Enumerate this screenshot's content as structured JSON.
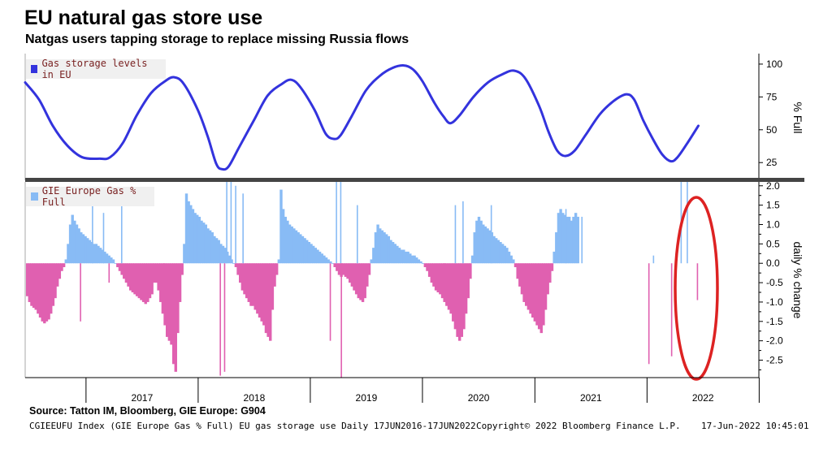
{
  "title": "EU natural gas store use",
  "subtitle": "Natgas users tapping storage to replace missing Russia flows",
  "footer": {
    "source": "Source: Tatton IM, Bloomberg, GIE Europe: G904",
    "index_line": "CGIEEUFU Index (GIE Europe Gas % Full) EU gas storage use  Daily 17JUN2016-17JUN2022",
    "copyright": "Copyright© 2022 Bloomberg Finance L.P.",
    "timestamp": "17-Jun-2022 10:45:01"
  },
  "colors": {
    "line": "#3333dd",
    "positive_bar": "#88bbf5",
    "negative_bar": "#e060b0",
    "highlight_ellipse": "#dd2222",
    "divider": "#444444"
  },
  "chart_data": [
    {
      "type": "line",
      "legend": "Gas storage levels in EU",
      "ylabel": "% Full",
      "yticks": [
        25,
        50,
        75,
        100
      ],
      "ylim": [
        14,
        108
      ],
      "x_axis": "date",
      "points": [
        [
          "2016-06-17",
          86
        ],
        [
          "2016-08-01",
          73
        ],
        [
          "2016-09-15",
          53
        ],
        [
          "2016-11-01",
          38
        ],
        [
          "2016-12-20",
          29
        ],
        [
          "2017-02-15",
          28
        ],
        [
          "2017-03-20",
          29
        ],
        [
          "2017-05-01",
          40
        ],
        [
          "2017-06-15",
          61
        ],
        [
          "2017-08-01",
          78
        ],
        [
          "2017-09-15",
          87
        ],
        [
          "2017-10-15",
          90
        ],
        [
          "2017-11-15",
          85
        ],
        [
          "2017-12-31",
          65
        ],
        [
          "2018-02-01",
          45
        ],
        [
          "2018-03-01",
          24
        ],
        [
          "2018-03-20",
          20
        ],
        [
          "2018-04-10",
          22
        ],
        [
          "2018-05-15",
          37
        ],
        [
          "2018-07-01",
          57
        ],
        [
          "2018-08-15",
          76
        ],
        [
          "2018-10-01",
          85
        ],
        [
          "2018-11-01",
          88
        ],
        [
          "2018-12-01",
          82
        ],
        [
          "2019-01-15",
          65
        ],
        [
          "2019-02-20",
          47
        ],
        [
          "2019-03-20",
          43
        ],
        [
          "2019-04-10",
          46
        ],
        [
          "2019-05-15",
          60
        ],
        [
          "2019-07-01",
          80
        ],
        [
          "2019-08-15",
          91
        ],
        [
          "2019-09-25",
          97
        ],
        [
          "2019-11-01",
          99
        ],
        [
          "2019-12-01",
          96
        ],
        [
          "2020-01-01",
          87
        ],
        [
          "2020-02-10",
          70
        ],
        [
          "2020-03-10",
          60
        ],
        [
          "2020-04-01",
          55
        ],
        [
          "2020-05-01",
          61
        ],
        [
          "2020-06-15",
          75
        ],
        [
          "2020-08-01",
          86
        ],
        [
          "2020-09-15",
          92
        ],
        [
          "2020-10-25",
          95
        ],
        [
          "2020-12-01",
          89
        ],
        [
          "2021-01-15",
          68
        ],
        [
          "2021-02-15",
          48
        ],
        [
          "2021-03-15",
          34
        ],
        [
          "2021-04-10",
          30
        ],
        [
          "2021-05-10",
          34
        ],
        [
          "2021-06-15",
          46
        ],
        [
          "2021-08-01",
          62
        ],
        [
          "2021-09-15",
          72
        ],
        [
          "2021-10-25",
          77
        ],
        [
          "2021-11-20",
          73
        ],
        [
          "2021-12-20",
          57
        ],
        [
          "2022-01-20",
          43
        ],
        [
          "2022-02-20",
          31
        ],
        [
          "2022-03-20",
          26
        ],
        [
          "2022-04-10",
          29
        ],
        [
          "2022-05-10",
          39
        ],
        [
          "2022-06-17",
          53
        ]
      ]
    },
    {
      "type": "bar",
      "legend": "GIE Europe Gas % Full",
      "ylabel": "daily % change",
      "yticks": [
        2.0,
        1.5,
        1.0,
        0.5,
        0.0,
        -0.5,
        -1.0,
        -1.5,
        -2.0,
        -2.5
      ],
      "ylim": [
        -2.95,
        2.1
      ],
      "x_axis": "date",
      "xlim": [
        "2016-06-17",
        "2022-12-31"
      ],
      "xticks": [
        "2017",
        "2018",
        "2019",
        "2020",
        "2021",
        "2022"
      ],
      "weekly_profile": [
        -0.85,
        -1.0,
        -1.1,
        -1.15,
        -1.2,
        -1.3,
        -1.4,
        -1.5,
        -1.55,
        -1.5,
        -1.45,
        -1.3,
        -1.1,
        -0.9,
        -0.6,
        -0.4,
        -0.2,
        -0.1,
        0.1,
        0.5,
        1.0,
        1.25,
        1.1,
        1.0,
        0.9,
        0.8,
        0.75,
        0.7,
        0.65,
        0.6,
        0.55,
        0.5,
        0.5,
        0.45,
        0.4,
        0.35,
        0.3,
        0.25,
        0.2,
        0.15,
        0.1,
        0.0,
        -0.1,
        -0.2,
        -0.3,
        -0.4,
        -0.5,
        -0.6,
        -0.7,
        -0.75,
        -0.8,
        -0.85,
        -0.9,
        -0.95,
        -1.0,
        -1.05,
        -1.0,
        -0.9,
        -0.8,
        -0.5,
        -0.5,
        -0.7,
        -1.0,
        -1.3,
        -1.6,
        -1.9,
        -2.0,
        -2.1,
        -2.6,
        -2.8,
        -1.8,
        -1.0,
        -0.3,
        0.5,
        1.8,
        1.6,
        1.5,
        1.4,
        1.3,
        1.25,
        1.2,
        1.1,
        1.05,
        1.0,
        0.9,
        0.85,
        0.8,
        0.7,
        0.65,
        0.6,
        0.5,
        0.45,
        0.4,
        0.3,
        0.2,
        0.1,
        0.0,
        -0.1,
        -0.3,
        -0.5,
        -0.7,
        -0.8,
        -0.9,
        -1.0,
        -1.1,
        -1.1,
        -1.2,
        -1.3,
        -1.4,
        -1.5,
        -1.6,
        -1.8,
        -1.9,
        -2.0,
        -1.2,
        -0.6,
        -0.3,
        0.1,
        1.9,
        1.4,
        1.2,
        1.1,
        1.0,
        0.95,
        0.9,
        0.85,
        0.8,
        0.75,
        0.7,
        0.65,
        0.6,
        0.55,
        0.5,
        0.45,
        0.4,
        0.35,
        0.3,
        0.25,
        0.2,
        0.15,
        0.1,
        0.05,
        0.0,
        -0.1,
        -0.2,
        -0.3,
        -0.35,
        -0.3,
        -0.35,
        -0.4,
        -0.5,
        -0.6,
        -0.7,
        -0.8,
        -0.9,
        -0.95,
        -1.0,
        -0.9,
        -0.6,
        -0.3,
        0.1,
        0.4,
        0.8,
        1.0,
        0.9,
        0.85,
        0.8,
        0.75,
        0.7,
        0.6,
        0.55,
        0.5,
        0.45,
        0.4,
        0.35,
        0.35,
        0.3,
        0.3,
        0.25,
        0.2,
        0.2,
        0.15,
        0.1,
        0.05,
        0.0,
        -0.1,
        -0.2,
        -0.35,
        -0.5,
        -0.6,
        -0.7,
        -0.75,
        -0.8,
        -0.9,
        -1.0,
        -1.1,
        -1.2,
        -1.3,
        -1.5,
        -1.7,
        -1.9,
        -2.0,
        -1.9,
        -1.7,
        -1.3,
        -0.9,
        -0.4,
        0.2,
        0.8,
        1.1,
        1.2,
        1.1,
        1.0,
        0.95,
        0.9,
        0.85,
        0.8,
        0.7,
        0.65,
        0.6,
        0.55,
        0.5,
        0.45,
        0.4,
        0.3,
        0.2,
        0.1,
        -0.1,
        -0.4,
        -0.6,
        -0.8,
        -1.0,
        -1.1,
        -1.2,
        -1.3,
        -1.4,
        -1.5,
        -1.6,
        -1.7,
        -1.8,
        -1.6,
        -1.2,
        -0.8,
        -0.5,
        -0.2,
        0.3,
        0.8,
        1.3,
        1.4,
        1.3,
        1.25,
        1.2,
        1.2,
        1.1,
        1.2,
        1.3,
        1.2
      ],
      "spikes": [
        [
          "2016-12-12",
          -1.5
        ],
        [
          "2017-01-20",
          1.5
        ],
        [
          "2017-02-25",
          1.3
        ],
        [
          "2017-03-15",
          -0.5
        ],
        [
          "2017-04-25",
          1.6
        ],
        [
          "2017-09-10",
          -0.2
        ],
        [
          "2018-03-12",
          -2.9
        ],
        [
          "2018-03-26",
          -2.8
        ],
        [
          "2018-04-02",
          2.1
        ],
        [
          "2018-04-16",
          2.1
        ],
        [
          "2018-05-01",
          2.0
        ],
        [
          "2018-05-25",
          1.8
        ],
        [
          "2019-03-05",
          -2.0
        ],
        [
          "2019-03-25",
          2.1
        ],
        [
          "2019-04-08",
          2.1
        ],
        [
          "2019-04-10",
          -2.95
        ],
        [
          "2019-06-01",
          1.5
        ],
        [
          "2020-03-10",
          -0.5
        ],
        [
          "2020-04-15",
          1.5
        ],
        [
          "2020-05-10",
          1.6
        ],
        [
          "2020-08-10",
          1.5
        ],
        [
          "2021-04-10",
          1.4
        ],
        [
          "2021-06-01",
          1.2
        ],
        [
          "2022-01-05",
          -2.6
        ],
        [
          "2022-01-20",
          0.2
        ],
        [
          "2022-03-20",
          -2.4
        ],
        [
          "2022-04-20",
          2.1
        ],
        [
          "2022-05-10",
          2.1
        ],
        [
          "2022-06-12",
          -0.95
        ]
      ]
    }
  ]
}
